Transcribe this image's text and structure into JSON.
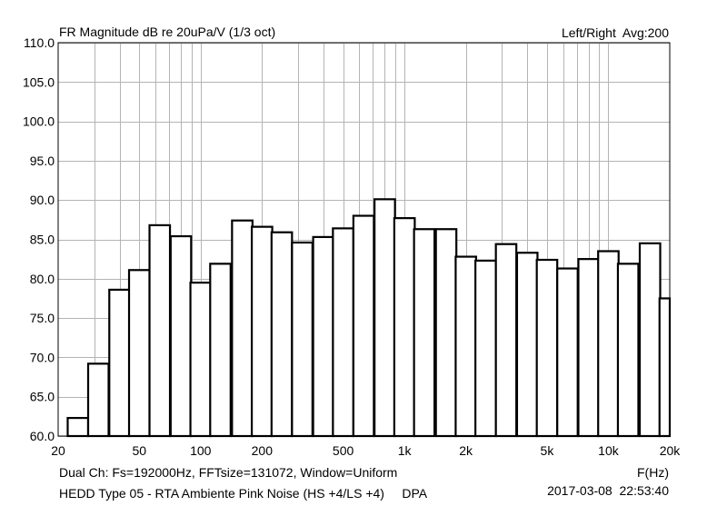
{
  "header": {
    "title": "FR Magnitude dB re 20uPa/V (1/3 oct)",
    "channel_info": "Left/Right  Avg:200"
  },
  "footer": {
    "line1": "Dual Ch: Fs=192000Hz, FFTsize=131072, Window=Uniform",
    "line2": "HEDD Type 05 - RTA Ambiente Pink Noise (HS +4/LS +4)     DPA",
    "xunit": "F(Hz)",
    "timestamp": "2017-03-08  22:53:40"
  },
  "chart_data": {
    "type": "bar",
    "title": "FR Magnitude dB re 20uPa/V (1/3 oct)",
    "xlabel": "F(Hz)",
    "ylabel": "",
    "xscale": "log",
    "xlim": [
      20,
      20000
    ],
    "ylim": [
      60,
      110
    ],
    "grid": true,
    "yticks": [
      "60.0",
      "65.0",
      "70.0",
      "75.0",
      "80.0",
      "85.0",
      "90.0",
      "95.0",
      "100.0",
      "105.0",
      "110.0"
    ],
    "xticks": [
      {
        "value": 20,
        "label": "20"
      },
      {
        "value": 50,
        "label": "50"
      },
      {
        "value": 100,
        "label": "100"
      },
      {
        "value": 200,
        "label": "200"
      },
      {
        "value": 500,
        "label": "500"
      },
      {
        "value": 1000,
        "label": "1k"
      },
      {
        "value": 2000,
        "label": "2k"
      },
      {
        "value": 5000,
        "label": "5k"
      },
      {
        "value": 10000,
        "label": "10k"
      },
      {
        "value": 20000,
        "label": "20k"
      }
    ],
    "categories": [
      25,
      31.5,
      40,
      50,
      63,
      80,
      100,
      125,
      160,
      200,
      250,
      315,
      400,
      500,
      630,
      800,
      1000,
      1250,
      1600,
      2000,
      2500,
      3150,
      4000,
      5000,
      6300,
      8000,
      10000,
      12500,
      16000,
      20000
    ],
    "values": [
      62.3,
      69.2,
      78.6,
      81.1,
      86.8,
      85.4,
      79.5,
      81.9,
      87.4,
      86.6,
      85.9,
      84.6,
      85.3,
      86.4,
      88.0,
      90.1,
      87.7,
      86.3,
      86.3,
      82.8,
      82.3,
      84.4,
      83.3,
      82.4,
      81.3,
      82.5,
      83.5,
      81.9,
      84.5,
      77.5
    ]
  }
}
